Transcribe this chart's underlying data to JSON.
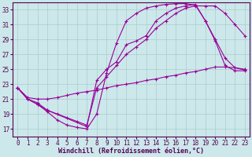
{
  "xlabel": "Windchill (Refroidissement éolien,°C)",
  "bg_color": "#cce8ea",
  "grid_color": "#aacccc",
  "line_color": "#990099",
  "xlim": [
    -0.5,
    23.5
  ],
  "ylim": [
    16,
    34
  ],
  "yticks": [
    17,
    19,
    21,
    23,
    25,
    27,
    29,
    31,
    33
  ],
  "xticks": [
    0,
    1,
    2,
    3,
    4,
    5,
    6,
    7,
    8,
    9,
    10,
    11,
    12,
    13,
    14,
    15,
    16,
    17,
    18,
    19,
    20,
    21,
    22,
    23
  ],
  "lines": [
    {
      "x": [
        0,
        1,
        2,
        3,
        4,
        5,
        6,
        7,
        8,
        9,
        10,
        11,
        12,
        13,
        14,
        15,
        16,
        17,
        18,
        19,
        20,
        21,
        22,
        23
      ],
      "y": [
        22.5,
        21.0,
        20.3,
        19.3,
        18.2,
        17.5,
        17.2,
        17.0,
        19.0,
        24.5,
        28.5,
        31.5,
        32.5,
        33.2,
        33.5,
        33.7,
        33.8,
        33.8,
        33.6,
        31.5,
        28.8,
        25.5,
        24.8,
        24.8
      ]
    },
    {
      "x": [
        0,
        1,
        2,
        3,
        7,
        8,
        9,
        10,
        11,
        12,
        13,
        14,
        15,
        16,
        17,
        18,
        19,
        20,
        21,
        22,
        23
      ],
      "y": [
        22.5,
        21.0,
        20.5,
        19.5,
        17.3,
        23.5,
        25.0,
        26.0,
        28.3,
        28.8,
        29.5,
        31.5,
        32.5,
        33.2,
        33.5,
        33.7,
        31.5,
        29.0,
        26.5,
        25.2,
        25.0
      ]
    },
    {
      "x": [
        0,
        1,
        2,
        3,
        4,
        5,
        6,
        7,
        8,
        9,
        10,
        11,
        12,
        13,
        14,
        15,
        16,
        17,
        18,
        19,
        20,
        21,
        22,
        23
      ],
      "y": [
        22.5,
        21.0,
        20.3,
        19.5,
        19.0,
        18.5,
        18.0,
        17.5,
        22.5,
        24.0,
        25.5,
        27.0,
        28.0,
        29.0,
        30.5,
        31.5,
        32.5,
        33.2,
        33.5,
        33.5,
        33.5,
        32.5,
        31.0,
        29.5
      ]
    },
    {
      "x": [
        0,
        1,
        2,
        3,
        4,
        5,
        6,
        7,
        8,
        9,
        10,
        11,
        12,
        13,
        14,
        15,
        16,
        17,
        18,
        19,
        20,
        21,
        22,
        23
      ],
      "y": [
        22.5,
        21.2,
        21.0,
        21.0,
        21.2,
        21.5,
        21.8,
        22.0,
        22.2,
        22.5,
        22.8,
        23.0,
        23.2,
        23.5,
        23.7,
        24.0,
        24.2,
        24.5,
        24.7,
        25.0,
        25.3,
        25.3,
        25.2,
        24.9
      ]
    }
  ]
}
